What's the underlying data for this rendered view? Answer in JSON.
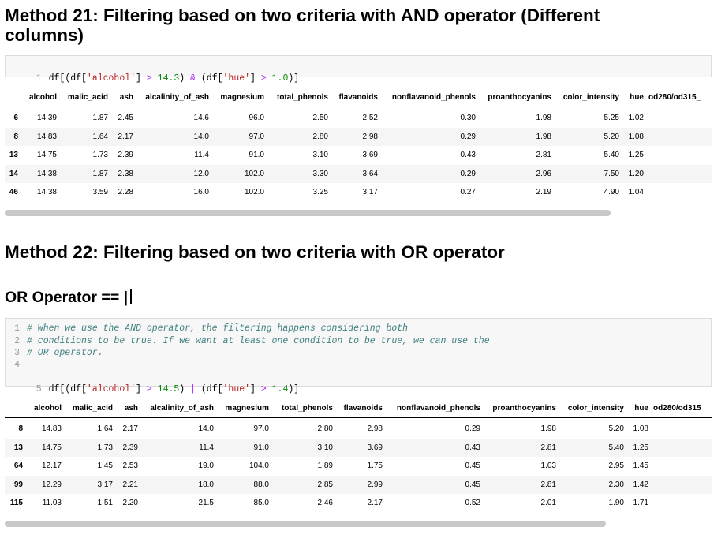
{
  "method21": {
    "title_line1": "Method 21: Filtering based on two criteria with AND operator (Different",
    "title_line2": "columns)",
    "code": {
      "line_no": "1",
      "t1": "df[(df[",
      "s1": "'alcohol'",
      "t2": "] ",
      "o1": ">",
      "n1": " 14.3",
      "t3": ") ",
      "o2": "&",
      "t4": " (df[",
      "s2": "'hue'",
      "t5": "] ",
      "o3": ">",
      "n2": " 1.0",
      "t6": ")]"
    },
    "table": {
      "columns": [
        "alcohol",
        "malic_acid",
        "ash",
        "alcalinity_of_ash",
        "magnesium",
        "total_phenols",
        "flavanoids",
        "nonflavanoid_phenols",
        "proanthocyanins",
        "color_intensity",
        "hue",
        "od280/od315_"
      ],
      "rows": [
        {
          "index": "6",
          "values": [
            "14.39",
            "1.87",
            "2.45",
            "14.6",
            "96.0",
            "2.50",
            "2.52",
            "0.30",
            "1.98",
            "5.25",
            "1.02",
            ""
          ]
        },
        {
          "index": "8",
          "values": [
            "14.83",
            "1.64",
            "2.17",
            "14.0",
            "97.0",
            "2.80",
            "2.98",
            "0.29",
            "1.98",
            "5.20",
            "1.08",
            ""
          ]
        },
        {
          "index": "13",
          "values": [
            "14.75",
            "1.73",
            "2.39",
            "11.4",
            "91.0",
            "3.10",
            "3.69",
            "0.43",
            "2.81",
            "5.40",
            "1.25",
            ""
          ]
        },
        {
          "index": "14",
          "values": [
            "14.38",
            "1.87",
            "2.38",
            "12.0",
            "102.0",
            "3.30",
            "3.64",
            "0.29",
            "2.96",
            "7.50",
            "1.20",
            ""
          ]
        },
        {
          "index": "46",
          "values": [
            "14.38",
            "3.59",
            "2.28",
            "16.0",
            "102.0",
            "3.25",
            "3.17",
            "0.27",
            "2.19",
            "4.90",
            "1.04",
            ""
          ]
        }
      ]
    }
  },
  "method22": {
    "title": "Method 22: Filtering based on two criteria with OR operator",
    "subtitle": "OR Operator == |",
    "code": {
      "line_numbers": [
        "1",
        "2",
        "3",
        "4",
        "5"
      ],
      "comment1": "# When we use the AND operator, the filtering happens considering both",
      "comment2": "# conditions to be true. If we want at least one condition to be true, we can use the",
      "comment3": "# OR operator.",
      "t1": "df[(df[",
      "s1": "'alcohol'",
      "t2": "] ",
      "o1": ">",
      "n1": " 14.5",
      "t3": ") ",
      "o2": "|",
      "t4": " (df[",
      "s2": "'hue'",
      "t5": "] ",
      "o3": ">",
      "n2": " 1.4",
      "t6": ")]"
    },
    "table": {
      "columns": [
        "alcohol",
        "malic_acid",
        "ash",
        "alcalinity_of_ash",
        "magnesium",
        "total_phenols",
        "flavanoids",
        "nonflavanoid_phenols",
        "proanthocyanins",
        "color_intensity",
        "hue",
        "od280/od315"
      ],
      "rows": [
        {
          "index": "8",
          "values": [
            "14.83",
            "1.64",
            "2.17",
            "14.0",
            "97.0",
            "2.80",
            "2.98",
            "0.29",
            "1.98",
            "5.20",
            "1.08",
            ""
          ]
        },
        {
          "index": "13",
          "values": [
            "14.75",
            "1.73",
            "2.39",
            "11.4",
            "91.0",
            "3.10",
            "3.69",
            "0.43",
            "2.81",
            "5.40",
            "1.25",
            ""
          ]
        },
        {
          "index": "64",
          "values": [
            "12.17",
            "1.45",
            "2.53",
            "19.0",
            "104.0",
            "1.89",
            "1.75",
            "0.45",
            "1.03",
            "2.95",
            "1.45",
            ""
          ]
        },
        {
          "index": "99",
          "values": [
            "12.29",
            "3.17",
            "2.21",
            "18.0",
            "88.0",
            "2.85",
            "2.99",
            "0.45",
            "2.81",
            "2.30",
            "1.42",
            ""
          ]
        },
        {
          "index": "115",
          "values": [
            "11.03",
            "1.51",
            "2.20",
            "21.5",
            "85.0",
            "2.46",
            "2.17",
            "0.52",
            "2.01",
            "1.90",
            "1.71",
            ""
          ]
        }
      ]
    }
  }
}
